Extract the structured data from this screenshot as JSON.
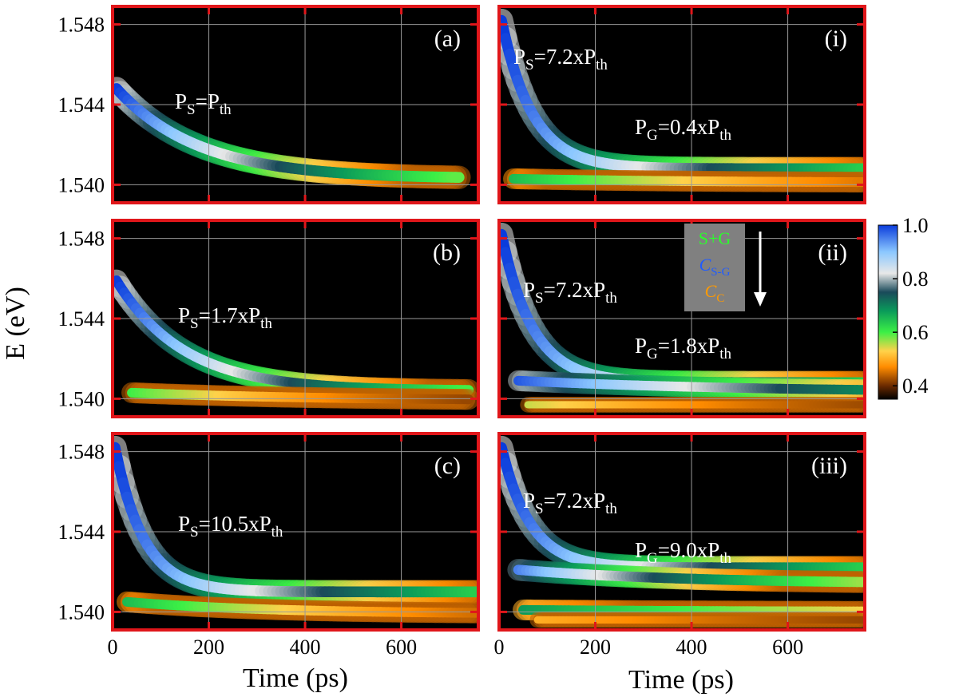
{
  "chart_data": {
    "type": "heatmap",
    "xlabel": "Time (ps)",
    "ylabel": "E (eV)",
    "xlim": [
      0,
      760
    ],
    "ylim": [
      1.5391,
      1.5489
    ],
    "x_ticks": [
      0,
      200,
      400,
      600
    ],
    "x_tick_labels": [
      "0",
      "200",
      "400",
      "600"
    ],
    "y_ticks": [
      1.54,
      1.544,
      1.548
    ],
    "y_tick_labels": [
      "1.540",
      "1.544",
      "1.548"
    ],
    "grid": true,
    "colorbar": {
      "range": [
        0.35,
        1.0
      ],
      "ticks": [
        0.4,
        0.6,
        0.8,
        1.0
      ],
      "tick_labels": [
        "0.4",
        "0.6",
        "0.8",
        "1.0"
      ],
      "stops": [
        {
          "v": 0.35,
          "color": "#000000"
        },
        {
          "v": 0.4,
          "color": "#6b2a00"
        },
        {
          "v": 0.47,
          "color": "#ff8c00"
        },
        {
          "v": 0.53,
          "color": "#ffd24a"
        },
        {
          "v": 0.6,
          "color": "#3cf046"
        },
        {
          "v": 0.68,
          "color": "#0a9a5a"
        },
        {
          "v": 0.75,
          "color": "#1a4a5a"
        },
        {
          "v": 0.82,
          "color": "#e8e8e8"
        },
        {
          "v": 0.9,
          "color": "#8cc8ff"
        },
        {
          "v": 1.0,
          "color": "#0a3cdc"
        }
      ]
    },
    "panels": [
      {
        "id": "a",
        "label": "(a)",
        "col": 0,
        "row": 0,
        "annotations": [
          {
            "main": "P",
            "sub": "S",
            "rest": "=P",
            "sub2": "th"
          }
        ],
        "branches": [
          {
            "E0": 1.5448,
            "Einf": 1.5403,
            "tau": 170,
            "t_start": 8,
            "t_end": 720,
            "w": 0.00045,
            "peak": 1.0,
            "decay": 700
          }
        ]
      },
      {
        "id": "b",
        "label": "(b)",
        "col": 0,
        "row": 1,
        "annotations": [
          {
            "main": "P",
            "sub": "S",
            "rest": "=1.7xP",
            "sub2": "th"
          }
        ],
        "branches": [
          {
            "E0": 1.5459,
            "Einf": 1.5404,
            "tau": 140,
            "t_start": 8,
            "t_end": 740,
            "w": 0.00042,
            "peak": 1.0,
            "decay": 750
          },
          {
            "E0": 1.5403,
            "Einf": 1.5399,
            "tau": 400,
            "t_start": 40,
            "t_end": 740,
            "w": 0.0004,
            "peak": 0.6,
            "decay": 550
          }
        ]
      },
      {
        "id": "c",
        "label": "(c)",
        "col": 0,
        "row": 2,
        "annotations": [
          {
            "main": "P",
            "sub": "S",
            "rest": "=10.5xP",
            "sub2": "th"
          }
        ],
        "branches": [
          {
            "E0": 1.5482,
            "Einf": 1.541,
            "tau": 60,
            "t_start": 5,
            "t_end": 760,
            "w": 0.00045,
            "peak": 1.0,
            "decay": 900
          },
          {
            "E0": 1.5405,
            "Einf": 1.5399,
            "tau": 300,
            "t_start": 30,
            "t_end": 760,
            "w": 0.0004,
            "peak": 0.65,
            "decay": 650
          }
        ]
      },
      {
        "id": "i",
        "label": "(i)",
        "col": 1,
        "row": 0,
        "annotations": [
          {
            "main": "P",
            "sub": "S",
            "rest": "=7.2xP",
            "sub2": "th"
          },
          {
            "main": "P",
            "sub": "G",
            "rest": "=0.4xP",
            "sub2": "th"
          }
        ],
        "branches": [
          {
            "E0": 1.5482,
            "Einf": 1.5408,
            "tau": 65,
            "t_start": 5,
            "t_end": 760,
            "w": 0.00045,
            "peak": 1.0,
            "decay": 900
          },
          {
            "E0": 1.5403,
            "Einf": 1.5401,
            "tau": 400,
            "t_start": 30,
            "t_end": 760,
            "w": 0.0004,
            "peak": 0.65,
            "decay": 700
          }
        ]
      },
      {
        "id": "ii",
        "label": "(ii)",
        "col": 1,
        "row": 1,
        "annotations": [
          {
            "main": "P",
            "sub": "S",
            "rest": "=7.2xP",
            "sub2": "th"
          },
          {
            "main": "P",
            "sub": "G",
            "rest": "=1.8xP",
            "sub2": "th"
          }
        ],
        "branches": [
          {
            "E0": 1.5482,
            "Einf": 1.5408,
            "tau": 65,
            "t_start": 5,
            "t_end": 760,
            "w": 0.00045,
            "peak": 1.0,
            "decay": 900
          },
          {
            "E0": 1.5409,
            "Einf": 1.5403,
            "tau": 500,
            "t_start": 40,
            "t_end": 760,
            "w": 0.0004,
            "peak": 0.98,
            "decay": 1200
          },
          {
            "E0": 1.5397,
            "Einf": 1.5397,
            "tau": 500,
            "t_start": 60,
            "t_end": 760,
            "w": 0.0003,
            "peak": 0.55,
            "decay": 700
          }
        ]
      },
      {
        "id": "iii",
        "label": "(iii)",
        "col": 1,
        "row": 2,
        "annotations": [
          {
            "main": "P",
            "sub": "S",
            "rest": "=7.2xP",
            "sub2": "th"
          },
          {
            "main": "P",
            "sub": "G",
            "rest": "=9.0xP",
            "sub2": "th"
          }
        ],
        "branches": [
          {
            "E0": 1.5482,
            "Einf": 1.5422,
            "tau": 60,
            "t_start": 5,
            "t_end": 760,
            "w": 0.00045,
            "peak": 1.0,
            "decay": 900
          },
          {
            "E0": 1.5421,
            "Einf": 1.5414,
            "tau": 350,
            "t_start": 40,
            "t_end": 760,
            "w": 0.00042,
            "peak": 0.95,
            "decay": 700
          },
          {
            "E0": 1.5401,
            "Einf": 1.54,
            "tau": 500,
            "t_start": 50,
            "t_end": 760,
            "w": 0.0004,
            "peak": 0.68,
            "decay": 1200
          },
          {
            "E0": 1.5396,
            "Einf": 1.5396,
            "tau": 500,
            "t_start": 80,
            "t_end": 760,
            "w": 0.0003,
            "peak": 0.5,
            "decay": 900
          }
        ]
      }
    ],
    "legend": {
      "entries": [
        {
          "text": "S+G",
          "color": "#2aff2a"
        },
        {
          "text": "C",
          "sub": "S-G",
          "color": "#1f5bff"
        },
        {
          "text": "C",
          "sub": "C",
          "color": "#ff9a00"
        }
      ]
    }
  }
}
